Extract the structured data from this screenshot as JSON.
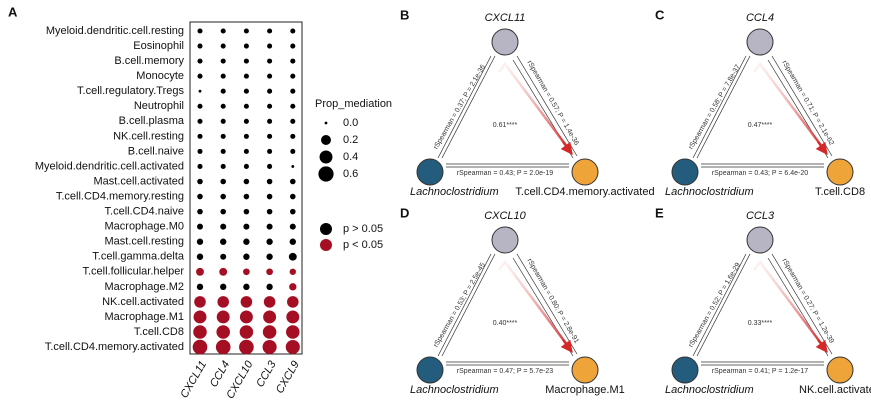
{
  "chart_data": {
    "type": "dot",
    "panel": "A",
    "categories": [
      "Myeloid.dendritic.cell.resting",
      "Eosinophil",
      "B.cell.memory",
      "Monocyte",
      "T.cell.regulatory.Tregs",
      "Neutrophil",
      "B.cell.plasma",
      "NK.cell.resting",
      "B.cell.naive",
      "Myeloid.dendritic.cell.activated",
      "Mast.cell.activated",
      "T.cell.CD4.memory.resting",
      "T.cell.CD4.naive",
      "Macrophage.M0",
      "Mast.cell.resting",
      "T.cell.gamma.delta",
      "T.cell.follicular.helper",
      "Macrophage.M2",
      "NK.cell.activated",
      "Macrophage.M1",
      "T.cell.CD8",
      "T.cell.CD4.memory.activated"
    ],
    "category_colors": [
      "#111111",
      "#111111",
      "#111111",
      "#111111",
      "#111111",
      "#111111",
      "#111111",
      "#111111",
      "#111111",
      "#111111",
      "#111111",
      "#111111",
      "#111111",
      "#111111",
      "#111111",
      "#111111",
      "#111111",
      "#111111",
      "#2b7bb9",
      "#2b7bb9",
      "#2b7bb9",
      "#2b7bb9"
    ],
    "size_title": "Prop_mediation",
    "size_ticks": [
      {
        "value": 0,
        "label": "0.0"
      },
      0.2,
      0.4,
      0.6
    ],
    "groups": [
      {
        "label": "p > 0.05",
        "color": "#000000"
      },
      {
        "label": "p < 0.05",
        "color": "#a50f24"
      }
    ],
    "series": [
      {
        "name": "CXCL11",
        "values": [
          0.02,
          0.02,
          0.02,
          0.02,
          0,
          0.02,
          0.02,
          0.02,
          0.02,
          0.02,
          0.03,
          0.03,
          0.03,
          0.04,
          0.05,
          0.05,
          0.1,
          0.05,
          0.3,
          0.4,
          0.45,
          0.55
        ],
        "group": [
          0,
          0,
          0,
          0,
          0,
          0,
          0,
          0,
          0,
          0,
          0,
          0,
          0,
          0,
          0,
          0,
          1,
          0,
          1,
          1,
          1,
          1
        ]
      },
      {
        "name": "CCL4",
        "values": [
          0.02,
          0.02,
          0.02,
          0.02,
          0.02,
          0.02,
          0.02,
          0.02,
          0.02,
          0.02,
          0.03,
          0.03,
          0.03,
          0.04,
          0.05,
          0.04,
          0.1,
          0.05,
          0.3,
          0.4,
          0.45,
          0.55
        ],
        "group": [
          0,
          0,
          0,
          0,
          0,
          0,
          0,
          0,
          0,
          0,
          0,
          0,
          0,
          0,
          0,
          0,
          1,
          0,
          1,
          1,
          1,
          1
        ]
      },
      {
        "name": "CXCL10",
        "values": [
          0.02,
          0.02,
          0.02,
          0.02,
          0.02,
          0.02,
          0.02,
          0.02,
          0.02,
          0.02,
          0.03,
          0.03,
          0.03,
          0.04,
          0.05,
          0.05,
          0.06,
          0.05,
          0.3,
          0.4,
          0.45,
          0.55
        ],
        "group": [
          0,
          0,
          0,
          0,
          0,
          0,
          0,
          0,
          0,
          0,
          0,
          0,
          0,
          0,
          0,
          0,
          1,
          0,
          1,
          1,
          1,
          1
        ]
      },
      {
        "name": "CCL3",
        "values": [
          0.02,
          0.02,
          0.02,
          0.02,
          0.02,
          0.02,
          0.02,
          0.02,
          0.02,
          0.02,
          0.03,
          0.03,
          0.03,
          0.04,
          0.05,
          0.05,
          0.06,
          0.05,
          0.3,
          0.4,
          0.45,
          0.5
        ],
        "group": [
          0,
          0,
          0,
          0,
          0,
          0,
          0,
          0,
          0,
          0,
          0,
          0,
          0,
          0,
          0,
          0,
          1,
          0,
          1,
          1,
          1,
          1
        ]
      },
      {
        "name": "CXCL9",
        "values": [
          0.02,
          0.02,
          0.02,
          0.02,
          0.02,
          0.02,
          0.02,
          0.02,
          0.02,
          0,
          0.03,
          0.03,
          0.03,
          0.04,
          0.05,
          0.1,
          0.05,
          0.08,
          0.3,
          0.4,
          0.45,
          0.5
        ],
        "group": [
          0,
          0,
          0,
          0,
          0,
          0,
          0,
          0,
          0,
          0,
          0,
          0,
          0,
          0,
          0,
          0,
          1,
          1,
          1,
          1,
          1,
          1
        ]
      }
    ]
  },
  "diagrams": [
    {
      "letter": "B",
      "gene": "CXCL11",
      "source": "Lachnoclostridium",
      "target": "T.cell.CD4.memory.activated",
      "left_edge": "rSpearman = 0.37; P = 2.1e-36",
      "right_edge": "rSpearman = 0.57; P = 1.4e-36",
      "bottom_edge": "rSpearman = 0.43; P = 2.0e-19",
      "center": "0.61****"
    },
    {
      "letter": "C",
      "gene": "CCL4",
      "source": "Lachnoclostridium",
      "target": "T.cell.CD8",
      "left_edge": "rSpearman = 0.58; P = 7.8e-37",
      "right_edge": "rSpearman = 0.71; P = 2.1e-62",
      "bottom_edge": "rSpearman = 0.43; P = 6.4e-20",
      "center": "0.47****"
    },
    {
      "letter": "D",
      "gene": "CXCL10",
      "source": "Lachnoclostridium",
      "target": "Macrophage.M1",
      "left_edge": "rSpearman = 0.53; P = 2.5e-45",
      "right_edge": "rSpearman = 0.80; P = 2.8e-91",
      "bottom_edge": "rSpearman = 0.47; P = 5.7e-23",
      "center": "0.40****"
    },
    {
      "letter": "E",
      "gene": "CCL3",
      "source": "Lachnoclostridium",
      "target": "NK.cell.activated",
      "left_edge": "rSpearman = 0.52; P = 1.6e-29",
      "right_edge": "rSpearman = 0.27; P = 1.2e-39",
      "bottom_edge": "rSpearman = 0.41; P = 1.2e-17",
      "center": "0.33****"
    }
  ]
}
